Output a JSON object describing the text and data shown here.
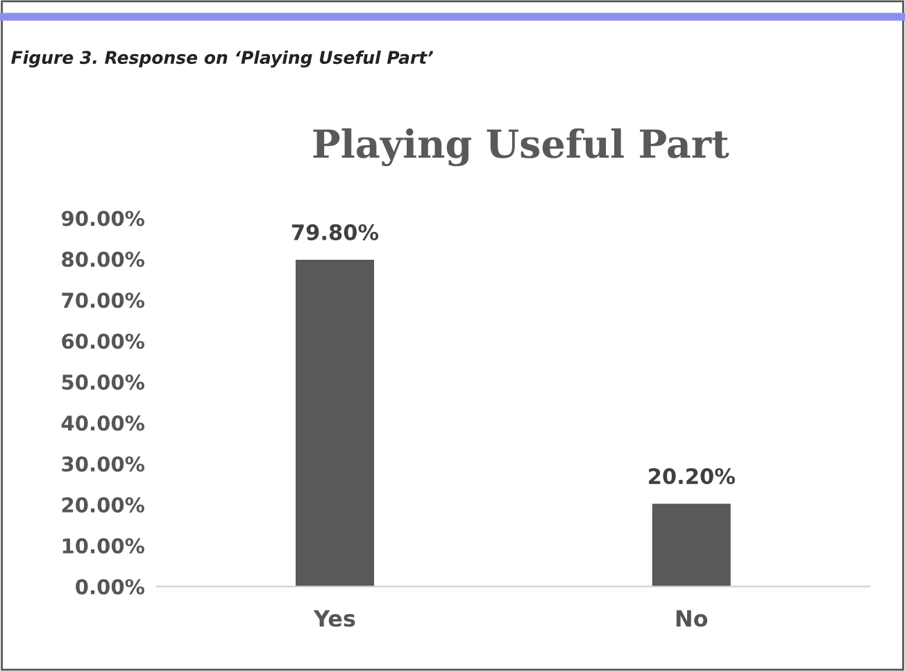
{
  "chart_data": {
    "type": "bar",
    "title": "Playing Useful Part",
    "annotations": [
      "Figure 3. Response on ‘Playing Useful Part’"
    ],
    "categories": [
      "Yes",
      "No"
    ],
    "values": [
      79.8,
      20.2
    ],
    "color": "#595959",
    "value_labels": [
      "79.80%",
      "20.20%"
    ],
    "ylim": [
      0,
      90
    ],
    "yticks": [
      {
        "value": 0,
        "label": "0.00%"
      },
      {
        "value": 10,
        "label": "10.00%"
      },
      {
        "value": 20,
        "label": "20.00%"
      },
      {
        "value": 30,
        "label": "30.00%"
      },
      {
        "value": 40,
        "label": "40.00%"
      },
      {
        "value": 50,
        "label": "50.00%"
      },
      {
        "value": 60,
        "label": "60.00%"
      },
      {
        "value": 70,
        "label": "70.00%"
      },
      {
        "value": 80,
        "label": "80.00%"
      },
      {
        "value": 90,
        "label": "90.00%"
      }
    ],
    "grid": false,
    "legend": false
  }
}
